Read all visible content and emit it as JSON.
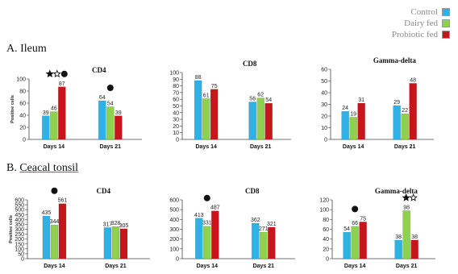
{
  "legend": [
    {
      "name": "Control",
      "color": "#2fb1e6"
    },
    {
      "name": "Dairy fed",
      "color": "#8fd14f"
    },
    {
      "name": "Probiotic fed",
      "color": "#c8151b"
    }
  ],
  "sections": [
    {
      "prefix": "A.",
      "name": "Ileum",
      "underlined": false
    },
    {
      "prefix": "B.",
      "name": "Ceacal tonsil",
      "underlined": true
    }
  ],
  "chart_data": [
    {
      "type": "bar",
      "section": "A. Ileum",
      "title": "CD4",
      "ylabel": "Positive cells",
      "ylim": [
        0,
        100
      ],
      "yticks": [
        0,
        20,
        40,
        60,
        80,
        100
      ],
      "categories": [
        "Days 14",
        "Days 21"
      ],
      "series": [
        {
          "name": "Control",
          "values": [
            39,
            64
          ]
        },
        {
          "name": "Dairy fed",
          "values": [
            46,
            54
          ]
        },
        {
          "name": "Probiotic fed",
          "values": [
            87,
            39
          ]
        }
      ],
      "markers": [
        {
          "category": "Days 14",
          "symbols": [
            "star-filled",
            "star-outline",
            "dot"
          ]
        },
        {
          "category": "Days 21",
          "symbols": [
            "dot"
          ]
        }
      ]
    },
    {
      "type": "bar",
      "section": "A. Ileum",
      "title": "CD8",
      "ylabel": "",
      "ylim": [
        0,
        100
      ],
      "yticks": [
        0,
        10,
        20,
        30,
        40,
        50,
        60,
        70,
        80,
        90,
        100
      ],
      "categories": [
        "Days 14",
        "Days 21"
      ],
      "series": [
        {
          "name": "Control",
          "values": [
            88,
            56
          ]
        },
        {
          "name": "Dairy fed",
          "values": [
            61,
            62
          ]
        },
        {
          "name": "Probiotic fed",
          "values": [
            75,
            54
          ]
        }
      ],
      "markers": []
    },
    {
      "type": "bar",
      "section": "A. Ileum",
      "title": "Gamma-delta",
      "ylabel": "",
      "ylim": [
        0,
        60
      ],
      "yticks": [
        0,
        10,
        20,
        30,
        40,
        50,
        60
      ],
      "categories": [
        "Days 14",
        "Days 21"
      ],
      "series": [
        {
          "name": "Control",
          "values": [
            24,
            29
          ]
        },
        {
          "name": "Dairy fed",
          "values": [
            19,
            22
          ]
        },
        {
          "name": "Probiotic fed",
          "values": [
            31,
            48
          ]
        }
      ],
      "markers": []
    },
    {
      "type": "bar",
      "section": "B. Ceacal tonsil",
      "title": "CD4",
      "ylabel": "Positive cells",
      "ylim": [
        0,
        600
      ],
      "yticks": [
        0,
        50,
        100,
        150,
        200,
        250,
        300,
        350,
        400,
        450,
        500,
        550,
        600
      ],
      "categories": [
        "Days 14",
        "Days 21"
      ],
      "series": [
        {
          "name": "Control",
          "values": [
            435,
            317
          ]
        },
        {
          "name": "Dairy fed",
          "values": [
            344,
            328
          ]
        },
        {
          "name": "Probiotic fed",
          "values": [
            561,
            305
          ]
        }
      ],
      "markers": [
        {
          "category": "Days 14",
          "symbols": [
            "dot"
          ]
        }
      ]
    },
    {
      "type": "bar",
      "section": "B. Ceacal tonsil",
      "title": "CD8",
      "ylabel": "",
      "ylim": [
        0,
        600
      ],
      "yticks": [
        0,
        100,
        200,
        300,
        400,
        500,
        600
      ],
      "categories": [
        "Days 14",
        "Days 21"
      ],
      "series": [
        {
          "name": "Control",
          "values": [
            413,
            362
          ]
        },
        {
          "name": "Dairy fed",
          "values": [
            331,
            271
          ]
        },
        {
          "name": "Probiotic fed",
          "values": [
            487,
            321
          ]
        }
      ],
      "markers": [
        {
          "category": "Days 14",
          "symbols": [
            "dot"
          ]
        }
      ]
    },
    {
      "type": "bar",
      "section": "B. Ceacal tonsil",
      "title": "Gamma-delta",
      "ylabel": "",
      "ylim": [
        0,
        120
      ],
      "yticks": [
        0,
        20,
        40,
        60,
        80,
        100,
        120
      ],
      "categories": [
        "Days 14",
        "Days 21"
      ],
      "series": [
        {
          "name": "Control",
          "values": [
            54,
            38
          ]
        },
        {
          "name": "Dairy fed",
          "values": [
            66,
            98
          ]
        },
        {
          "name": "Probiotic fed",
          "values": [
            75,
            38
          ]
        }
      ],
      "markers": [
        {
          "category": "Days 14",
          "symbols": [
            "dot"
          ]
        },
        {
          "category": "Days 21",
          "symbols": [
            "star-filled",
            "star-outline"
          ]
        }
      ]
    }
  ]
}
